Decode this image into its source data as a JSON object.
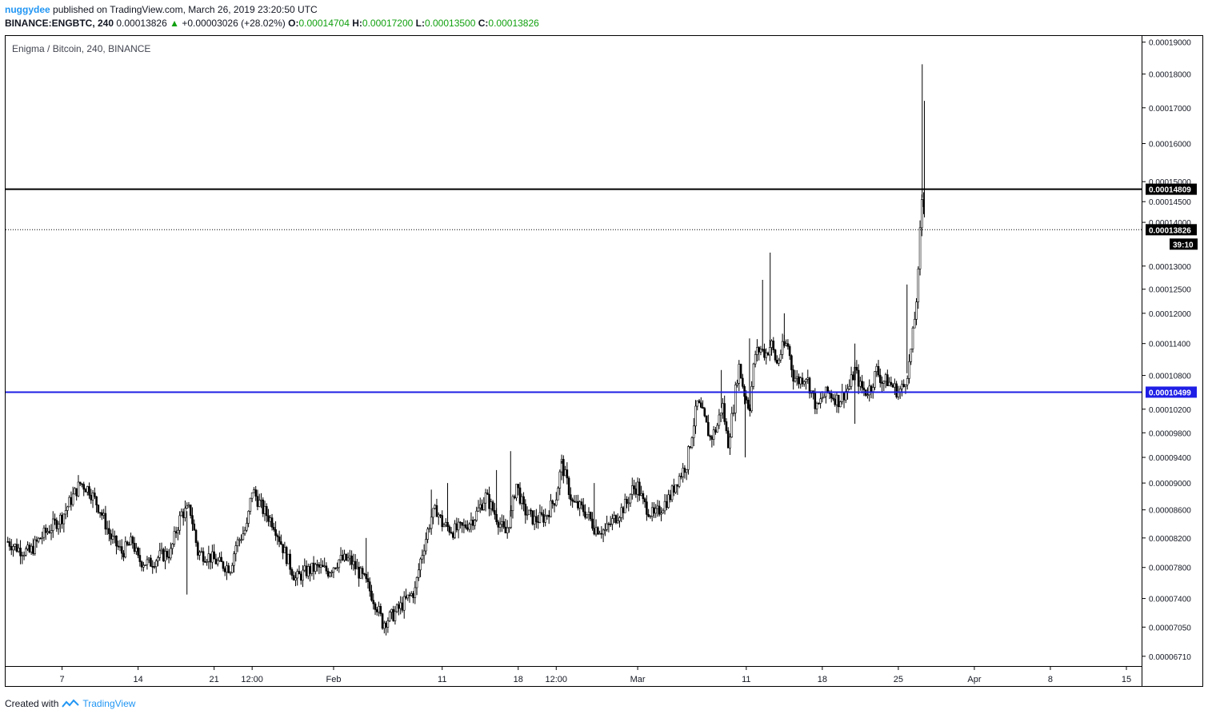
{
  "header": {
    "user": "nuggydee",
    "published_text": "published on TradingView.com, March 26, 2019 23:20:50 UTC",
    "symbol_text": "BINANCE:ENGBTC, 240",
    "last_value": "0.00013826",
    "change_text": "+0.00003026 (+28.02%)",
    "o_label": "O:",
    "o_value": "0.00014704",
    "h_label": "H:",
    "h_value": "0.00017200",
    "l_label": "L:",
    "l_value": "0.00013500",
    "c_label": "C:",
    "c_value": "0.00013826"
  },
  "footer": {
    "created_with": "Created with",
    "brand": "TradingView"
  },
  "colors": {
    "up": "#11a00f",
    "candle": "#000000",
    "blue_line": "#1e1ee6",
    "black_line": "#000000"
  },
  "chart_data": {
    "type": "candlestick",
    "title": "Enigma / Bitcoin, 240, BINANCE",
    "ylim": [
      6.6e-05,
      0.000192
    ],
    "y_scale": "log",
    "y_ticks": [
      "0.00019000",
      "0.00018000",
      "0.00017000",
      "0.00016000",
      "0.00015000",
      "0.00014500",
      "0.00014000",
      "0.00013000",
      "0.00012500",
      "0.00012000",
      "0.00011400",
      "0.00010800",
      "0.00010200",
      "0.00009800",
      "0.00009400",
      "0.00009000",
      "0.00008600",
      "0.00008200",
      "0.00007800",
      "0.00007400",
      "0.00007050",
      "0.00006710"
    ],
    "x_ticks": [
      "7",
      "14",
      "21",
      "12:00",
      "Feb",
      "11",
      "18",
      "12:00",
      "Mar",
      "11",
      "18",
      "25",
      "Apr",
      "8",
      "15"
    ],
    "x_tick_days": [
      7,
      14,
      21,
      24.5,
      32,
      42,
      49,
      52.5,
      60,
      70,
      77,
      84,
      91,
      98,
      105
    ],
    "x_range_days": [
      1.8,
      106.4
    ],
    "horizontal_lines": [
      {
        "value": 0.00014809,
        "label": "0.00014809",
        "color": "#000000",
        "style": "solid"
      },
      {
        "value": 0.00010499,
        "label": "0.00010499",
        "color": "#1e1ee6",
        "style": "solid"
      },
      {
        "value": 0.00013826,
        "label": "0.00013826",
        "color": "#000000",
        "style": "dotted"
      }
    ],
    "countdown": "39:10",
    "price_path": [
      [
        2.0,
        8.15
      ],
      [
        3.0,
        8.05
      ],
      [
        4.0,
        8.0
      ],
      [
        5.0,
        8.2
      ],
      [
        6.0,
        8.35
      ],
      [
        7.0,
        8.5
      ],
      [
        8.0,
        8.8
      ],
      [
        8.7,
        9.0
      ],
      [
        9.5,
        8.9
      ],
      [
        10.5,
        8.6
      ],
      [
        11.5,
        8.2
      ],
      [
        12.5,
        8.0
      ],
      [
        13.5,
        8.15
      ],
      [
        14.0,
        7.9
      ],
      [
        15.0,
        7.85
      ],
      [
        16.0,
        7.95
      ],
      [
        17.0,
        8.0
      ],
      [
        17.5,
        8.3
      ],
      [
        18.0,
        8.55
      ],
      [
        18.8,
        8.6
      ],
      [
        19.5,
        8.0
      ],
      [
        20.5,
        7.95
      ],
      [
        21.5,
        7.85
      ],
      [
        22.5,
        7.8
      ],
      [
        23.0,
        8.1
      ],
      [
        24.0,
        8.35
      ],
      [
        24.5,
        8.9
      ],
      [
        25.5,
        8.6
      ],
      [
        26.5,
        8.4
      ],
      [
        27.5,
        8.0
      ],
      [
        28.5,
        7.65
      ],
      [
        29.5,
        7.75
      ],
      [
        30.5,
        7.8
      ],
      [
        31.5,
        7.75
      ],
      [
        32.5,
        7.9
      ],
      [
        33.5,
        7.9
      ],
      [
        34.5,
        7.7
      ],
      [
        35.0,
        7.6
      ],
      [
        36.0,
        7.3
      ],
      [
        36.5,
        7.1
      ],
      [
        37.5,
        7.2
      ],
      [
        38.5,
        7.35
      ],
      [
        39.5,
        7.5
      ],
      [
        40.0,
        7.9
      ],
      [
        40.5,
        8.2
      ],
      [
        41.0,
        8.5
      ],
      [
        41.5,
        8.6
      ],
      [
        42.0,
        8.4
      ],
      [
        43.0,
        8.3
      ],
      [
        44.0,
        8.35
      ],
      [
        45.0,
        8.5
      ],
      [
        46.0,
        8.8
      ],
      [
        47.0,
        8.5
      ],
      [
        47.8,
        8.25
      ],
      [
        48.3,
        8.5
      ],
      [
        48.8,
        9.0
      ],
      [
        49.5,
        8.6
      ],
      [
        50.5,
        8.45
      ],
      [
        51.5,
        8.5
      ],
      [
        52.5,
        8.8
      ],
      [
        53.0,
        9.3
      ],
      [
        54.0,
        8.7
      ],
      [
        55.0,
        8.6
      ],
      [
        55.5,
        8.5
      ],
      [
        56.0,
        8.35
      ],
      [
        57.0,
        8.3
      ],
      [
        58.0,
        8.5
      ],
      [
        59.0,
        8.7
      ],
      [
        59.5,
        8.9
      ],
      [
        60.0,
        8.95
      ],
      [
        60.5,
        8.7
      ],
      [
        61.5,
        8.5
      ],
      [
        62.0,
        8.6
      ],
      [
        63.0,
        8.8
      ],
      [
        63.5,
        9.0
      ],
      [
        64.5,
        9.3
      ],
      [
        65.0,
        9.8
      ],
      [
        65.5,
        10.3
      ],
      [
        66.0,
        10.1
      ],
      [
        66.7,
        9.7
      ],
      [
        67.3,
        9.9
      ],
      [
        67.8,
        10.3
      ],
      [
        68.3,
        9.6
      ],
      [
        68.8,
        10.2
      ],
      [
        69.3,
        11.0
      ],
      [
        69.8,
        10.5
      ],
      [
        70.3,
        10.2
      ],
      [
        70.8,
        11.2
      ],
      [
        71.3,
        11.3
      ],
      [
        71.8,
        11.2
      ],
      [
        72.3,
        11.4
      ],
      [
        72.8,
        11.0
      ],
      [
        73.3,
        11.3
      ],
      [
        73.8,
        11.4
      ],
      [
        74.3,
        10.8
      ],
      [
        74.8,
        10.7
      ],
      [
        75.5,
        10.8
      ],
      [
        76.0,
        10.5
      ],
      [
        76.5,
        10.2
      ],
      [
        77.0,
        10.4
      ],
      [
        77.5,
        10.5
      ],
      [
        78.5,
        10.35
      ],
      [
        79.5,
        10.6
      ],
      [
        80.0,
        10.9
      ],
      [
        80.5,
        10.6
      ],
      [
        81.0,
        10.5
      ],
      [
        81.5,
        10.6
      ],
      [
        82.0,
        10.9
      ],
      [
        82.5,
        10.7
      ],
      [
        83.0,
        10.7
      ],
      [
        83.5,
        10.6
      ],
      [
        84.0,
        10.5
      ],
      [
        84.5,
        10.6
      ],
      [
        85.0,
        11.0
      ],
      [
        85.3,
        11.5
      ],
      [
        85.6,
        12.1
      ],
      [
        85.9,
        13.0
      ],
      [
        86.1,
        14.5
      ],
      [
        86.3,
        14.7
      ],
      [
        86.45,
        13.826
      ]
    ],
    "spikes": [
      [
        86.2,
        18.3
      ],
      [
        86.4,
        17.2
      ],
      [
        84.8,
        12.6
      ],
      [
        73.5,
        12.0
      ],
      [
        72.2,
        13.3
      ],
      [
        71.5,
        12.7
      ],
      [
        70.3,
        11.5
      ],
      [
        67.7,
        10.9
      ],
      [
        56.0,
        9.0
      ],
      [
        48.3,
        9.5
      ],
      [
        53.0,
        9.35
      ],
      [
        41.0,
        8.9
      ],
      [
        42.5,
        9.0
      ],
      [
        35.0,
        8.2
      ],
      [
        47.0,
        9.2
      ],
      [
        18.5,
        7.45
      ],
      [
        80.0,
        9.95
      ],
      [
        80.0,
        11.4
      ],
      [
        69.9,
        9.4
      ]
    ]
  }
}
